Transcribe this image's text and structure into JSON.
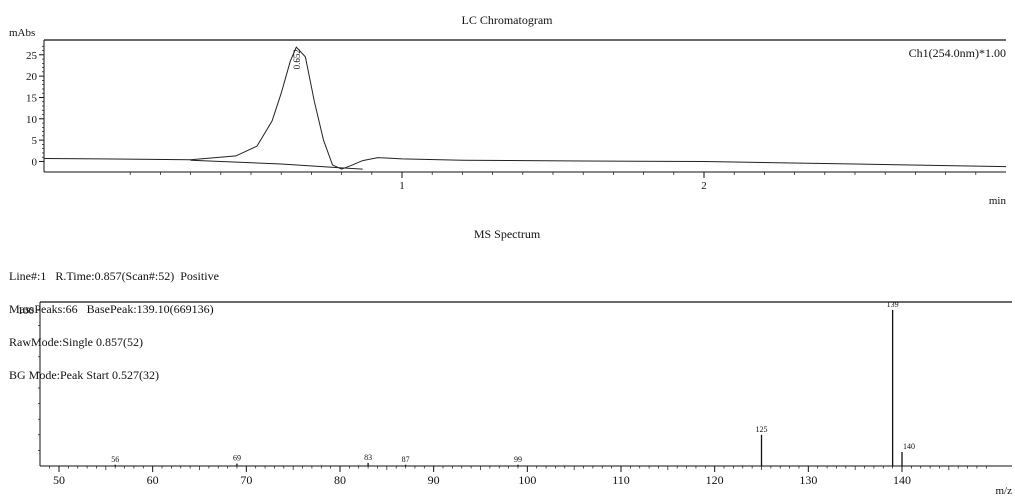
{
  "chart_data": [
    {
      "type": "line",
      "title": "LC Chromatogram",
      "ylabel": "mAbs",
      "xlabel": "min",
      "channel": "Ch1(254.0nm)*1.00",
      "xlim": [
        0,
        3.0
      ],
      "ylim": [
        -2,
        28
      ],
      "x_ticks": [
        {
          "v": 1,
          "label": "1"
        },
        {
          "v": 2,
          "label": "2"
        }
      ],
      "y_ticks": [
        {
          "v": 0,
          "label": "0"
        },
        {
          "v": 5,
          "label": "5"
        },
        {
          "v": 10,
          "label": "10"
        },
        {
          "v": 15,
          "label": "15"
        },
        {
          "v": 20,
          "label": "20"
        },
        {
          "v": 25,
          "label": "25"
        }
      ],
      "peak_label": {
        "x": 0.652,
        "y": 26.8,
        "text": "0.652"
      },
      "grid": false,
      "series": [
        {
          "x": [
            -0.3,
            0.0,
            0.3,
            0.45,
            0.52,
            0.57,
            0.6,
            0.63,
            0.65,
            0.68,
            0.71,
            0.74,
            0.77,
            0.8,
            0.83,
            0.87,
            0.92,
            1.0,
            1.2,
            1.6,
            2.0,
            2.5,
            3.0
          ],
          "y": [
            0.7,
            0.6,
            0.4,
            1.3,
            3.6,
            9.5,
            16.0,
            23.5,
            26.8,
            24.5,
            14.0,
            5.0,
            -0.8,
            -1.8,
            -1.0,
            0.2,
            0.9,
            0.6,
            0.3,
            0.1,
            0.0,
            -0.6,
            -1.2
          ]
        },
        {
          "x": [
            0.3,
            0.6,
            0.8,
            0.87
          ],
          "y": [
            0.3,
            -0.6,
            -1.5,
            -1.8
          ]
        }
      ]
    },
    {
      "type": "bar",
      "title": "MS Spectrum",
      "xlabel": "m/z",
      "ylim": [
        0,
        100
      ],
      "xlim": [
        49,
        150
      ],
      "y_ticks": [
        {
          "v": 100,
          "label": "100"
        }
      ],
      "x_ticks": [
        {
          "v": 50,
          "label": "50"
        },
        {
          "v": 60,
          "label": "60"
        },
        {
          "v": 70,
          "label": "70"
        },
        {
          "v": 80,
          "label": "80"
        },
        {
          "v": 90,
          "label": "90"
        },
        {
          "v": 100,
          "label": "100"
        },
        {
          "v": 110,
          "label": "110"
        },
        {
          "v": 120,
          "label": "120"
        },
        {
          "v": 130,
          "label": "130"
        },
        {
          "v": 140,
          "label": "140"
        }
      ],
      "peaks": [
        {
          "mz": 56,
          "intensity": 0.8,
          "label": "56"
        },
        {
          "mz": 69,
          "intensity": 1.5,
          "label": "69"
        },
        {
          "mz": 83,
          "intensity": 2.0,
          "label": "83"
        },
        {
          "mz": 87,
          "intensity": 0.8,
          "label": "87"
        },
        {
          "mz": 99,
          "intensity": 0.8,
          "label": "99"
        },
        {
          "mz": 125,
          "intensity": 20.0,
          "label": "125"
        },
        {
          "mz": 139,
          "intensity": 100.0,
          "label": "139"
        },
        {
          "mz": 140,
          "intensity": 9.0,
          "label": "140"
        }
      ],
      "info_lines": [
        "Line#:1   R.Time:0.857(Scan#:52)  Positive",
        "MassPeaks:66   BasePeak:139.10(669136)",
        "RawMode:Single 0.857(52)",
        "BG Mode:Peak Start 0.527(32)"
      ]
    }
  ]
}
